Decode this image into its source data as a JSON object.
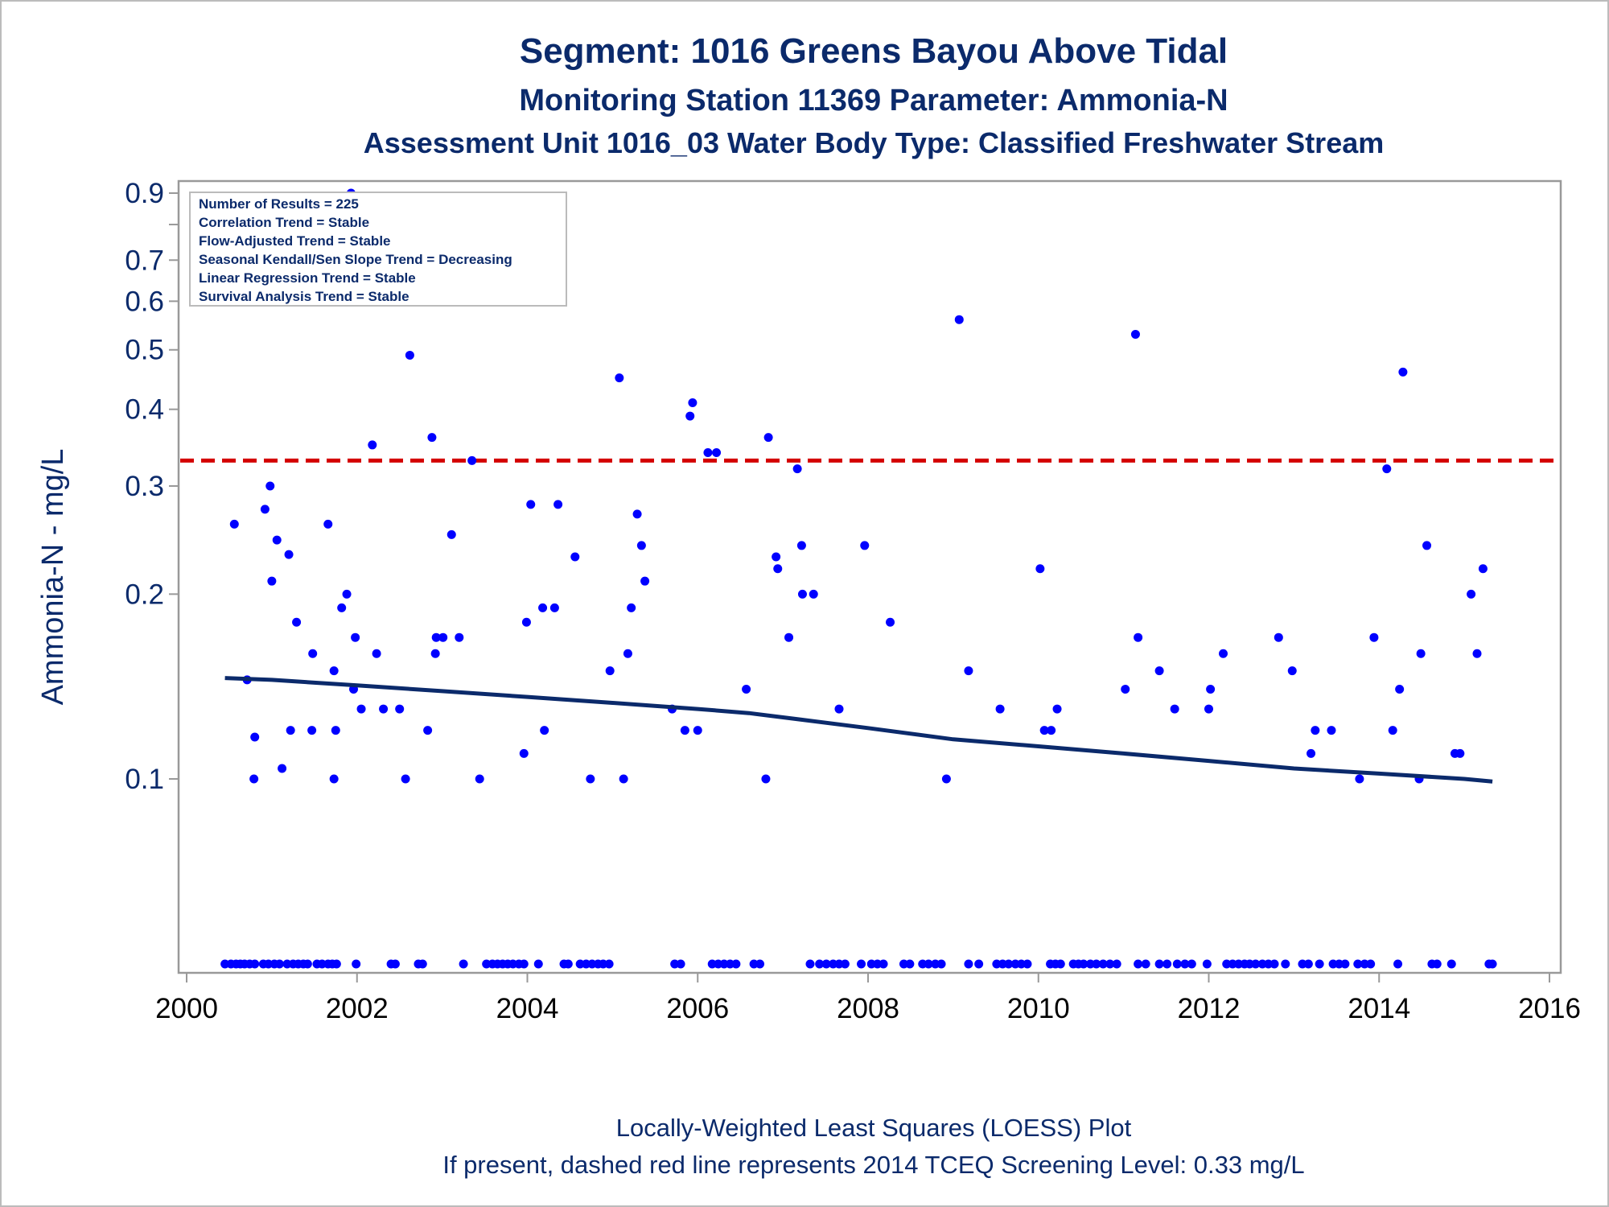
{
  "header": {
    "title": "Segment: 1016  Greens Bayou Above Tidal",
    "subtitle1": "Monitoring Station 11369 Parameter: Ammonia-N",
    "subtitle2": "Assessment Unit 1016_03   Water Body Type: Classified Freshwater Stream"
  },
  "stats": {
    "lines": [
      "Number of Results = 225",
      "Correlation Trend = Stable",
      "Flow-Adjusted Trend = Stable",
      "Seasonal Kendall/Sen Slope Trend = Decreasing",
      "Linear Regression Trend = Stable",
      "Survival Analysis Trend = Stable"
    ]
  },
  "footer": {
    "line1": "Locally-Weighted Least Squares (LOESS) Plot",
    "line2": "If present, dashed red line represents 2014 TCEQ Screening Level: 0.33 mg/L"
  },
  "colors": {
    "text": "#0b2a6b",
    "points": "#0000ff",
    "loess": "#0b2a6b",
    "screening": "#d40000",
    "axis": "#999999"
  },
  "chart_data": {
    "type": "scatter",
    "ylabel": "Ammonia-N - mg/L",
    "xlabel": "",
    "y_scale": "log",
    "xlim": [
      2000,
      2016
    ],
    "ylim": [
      0.05,
      0.93
    ],
    "x_ticks": [
      "2000",
      "2002",
      "2004",
      "2006",
      "2008",
      "2010",
      "2012",
      "2014",
      "2016"
    ],
    "y_ticks": [
      "0.9",
      "0.7",
      "0.6",
      "0.5",
      "0.4",
      "0.3",
      "0.2",
      "0.1"
    ],
    "y_minor_ticks": [
      0.8
    ],
    "screening_level": 0.33,
    "legend_placement": "top-left",
    "points": [
      [
        2000.56,
        0.26
      ],
      [
        2000.71,
        0.145
      ],
      [
        2000.8,
        0.117
      ],
      [
        2000.79,
        0.1
      ],
      [
        2000.92,
        0.275
      ],
      [
        2000.98,
        0.3
      ],
      [
        2001.0,
        0.21
      ],
      [
        2001.06,
        0.245
      ],
      [
        2001.12,
        0.104
      ],
      [
        2001.2,
        0.232
      ],
      [
        2001.22,
        0.12
      ],
      [
        2001.29,
        0.18
      ],
      [
        2001.47,
        0.12
      ],
      [
        2001.48,
        0.16
      ],
      [
        2001.66,
        0.26
      ],
      [
        2001.73,
        0.15
      ],
      [
        2001.75,
        0.12
      ],
      [
        2001.73,
        0.1
      ],
      [
        2001.82,
        0.19
      ],
      [
        2001.88,
        0.2
      ],
      [
        2001.93,
        0.9
      ],
      [
        2001.96,
        0.14
      ],
      [
        2001.98,
        0.17
      ],
      [
        2002.05,
        0.13
      ],
      [
        2002.18,
        0.35
      ],
      [
        2002.23,
        0.16
      ],
      [
        2002.31,
        0.13
      ],
      [
        2002.5,
        0.13
      ],
      [
        2002.57,
        0.1
      ],
      [
        2002.62,
        0.49
      ],
      [
        2002.83,
        0.12
      ],
      [
        2002.88,
        0.36
      ],
      [
        2002.92,
        0.16
      ],
      [
        2002.93,
        0.17
      ],
      [
        2003.01,
        0.17
      ],
      [
        2003.11,
        0.25
      ],
      [
        2003.2,
        0.17
      ],
      [
        2003.35,
        0.33
      ],
      [
        2003.44,
        0.1
      ],
      [
        2003.96,
        0.11
      ],
      [
        2003.99,
        0.18
      ],
      [
        2004.04,
        0.28
      ],
      [
        2004.18,
        0.19
      ],
      [
        2004.2,
        0.12
      ],
      [
        2004.32,
        0.19
      ],
      [
        2004.36,
        0.28
      ],
      [
        2004.56,
        0.23
      ],
      [
        2004.74,
        0.1
      ],
      [
        2004.97,
        0.15
      ],
      [
        2005.08,
        0.45
      ],
      [
        2005.13,
        0.1
      ],
      [
        2005.18,
        0.16
      ],
      [
        2005.22,
        0.19
      ],
      [
        2005.29,
        0.27
      ],
      [
        2005.34,
        0.24
      ],
      [
        2005.38,
        0.21
      ],
      [
        2005.7,
        0.13
      ],
      [
        2005.85,
        0.12
      ],
      [
        2005.91,
        0.39
      ],
      [
        2005.94,
        0.41
      ],
      [
        2006.0,
        0.12
      ],
      [
        2006.12,
        0.34
      ],
      [
        2006.22,
        0.34
      ],
      [
        2006.57,
        0.14
      ],
      [
        2006.8,
        0.1
      ],
      [
        2006.83,
        0.36
      ],
      [
        2006.92,
        0.23
      ],
      [
        2006.94,
        0.22
      ],
      [
        2007.07,
        0.17
      ],
      [
        2007.17,
        0.32
      ],
      [
        2007.22,
        0.24
      ],
      [
        2007.23,
        0.2
      ],
      [
        2007.36,
        0.2
      ],
      [
        2007.66,
        0.13
      ],
      [
        2007.96,
        0.24
      ],
      [
        2008.26,
        0.18
      ],
      [
        2008.92,
        0.1
      ],
      [
        2009.07,
        0.56
      ],
      [
        2009.18,
        0.15
      ],
      [
        2009.55,
        0.13
      ],
      [
        2010.02,
        0.22
      ],
      [
        2010.07,
        0.12
      ],
      [
        2010.15,
        0.12
      ],
      [
        2010.22,
        0.13
      ],
      [
        2011.02,
        0.14
      ],
      [
        2011.14,
        0.53
      ],
      [
        2011.17,
        0.17
      ],
      [
        2011.42,
        0.15
      ],
      [
        2011.6,
        0.13
      ],
      [
        2012.0,
        0.13
      ],
      [
        2012.02,
        0.14
      ],
      [
        2012.17,
        0.16
      ],
      [
        2012.82,
        0.17
      ],
      [
        2012.98,
        0.15
      ],
      [
        2013.2,
        0.11
      ],
      [
        2013.25,
        0.12
      ],
      [
        2013.44,
        0.12
      ],
      [
        2013.77,
        0.1
      ],
      [
        2013.94,
        0.17
      ],
      [
        2014.09,
        0.32
      ],
      [
        2014.16,
        0.12
      ],
      [
        2014.24,
        0.14
      ],
      [
        2014.28,
        0.46
      ],
      [
        2014.47,
        0.1
      ],
      [
        2014.49,
        0.16
      ],
      [
        2014.56,
        0.24
      ],
      [
        2014.89,
        0.11
      ],
      [
        2014.95,
        0.11
      ],
      [
        2015.08,
        0.2
      ],
      [
        2015.15,
        0.16
      ],
      [
        2015.22,
        0.22
      ]
    ],
    "floor_points_x": [
      2000.45,
      2000.52,
      2000.58,
      2000.63,
      2000.68,
      2000.74,
      2000.8,
      2000.9,
      2000.96,
      2001.03,
      2001.09,
      2001.18,
      2001.25,
      2001.31,
      2001.37,
      2001.42,
      2001.53,
      2001.59,
      2001.66,
      2001.71,
      2001.76,
      2001.99,
      2002.4,
      2002.45,
      2002.72,
      2002.77,
      2003.25,
      2003.52,
      2003.59,
      2003.65,
      2003.71,
      2003.77,
      2003.83,
      2003.9,
      2003.96,
      2004.13,
      2004.43,
      2004.48,
      2004.62,
      2004.69,
      2004.76,
      2004.83,
      2004.89,
      2004.96,
      2005.73,
      2005.8,
      2006.17,
      2006.24,
      2006.31,
      2006.38,
      2006.45,
      2006.66,
      2006.73,
      2007.32,
      2007.43,
      2007.51,
      2007.59,
      2007.66,
      2007.73,
      2007.92,
      2008.04,
      2008.11,
      2008.18,
      2008.42,
      2008.49,
      2008.64,
      2008.71,
      2008.79,
      2008.86,
      2009.18,
      2009.3,
      2009.51,
      2009.58,
      2009.65,
      2009.73,
      2009.8,
      2009.87,
      2010.14,
      2010.2,
      2010.26,
      2010.41,
      2010.47,
      2010.53,
      2010.61,
      2010.68,
      2010.76,
      2010.84,
      2010.92,
      2011.17,
      2011.26,
      2011.42,
      2011.51,
      2011.63,
      2011.72,
      2011.8,
      2011.98,
      2012.21,
      2012.28,
      2012.35,
      2012.42,
      2012.48,
      2012.55,
      2012.63,
      2012.7,
      2012.77,
      2012.9,
      2013.1,
      2013.17,
      2013.3,
      2013.46,
      2013.53,
      2013.6,
      2013.75,
      2013.83,
      2013.9,
      2014.22,
      2014.62,
      2014.68,
      2014.85,
      2015.29,
      2015.33
    ],
    "floor_value": 0.05,
    "loess": {
      "x": [
        2000.45,
        2001.0,
        2002.0,
        2003.0,
        2004.0,
        2005.0,
        2006.0,
        2006.6,
        2007.2,
        2008.0,
        2009.0,
        2010.0,
        2011.0,
        2012.0,
        2013.0,
        2014.0,
        2015.0,
        2015.33
      ],
      "y": [
        0.146,
        0.145,
        0.142,
        0.139,
        0.136,
        0.133,
        0.13,
        0.128,
        0.125,
        0.121,
        0.116,
        0.113,
        0.11,
        0.107,
        0.104,
        0.102,
        0.1,
        0.099
      ]
    }
  }
}
